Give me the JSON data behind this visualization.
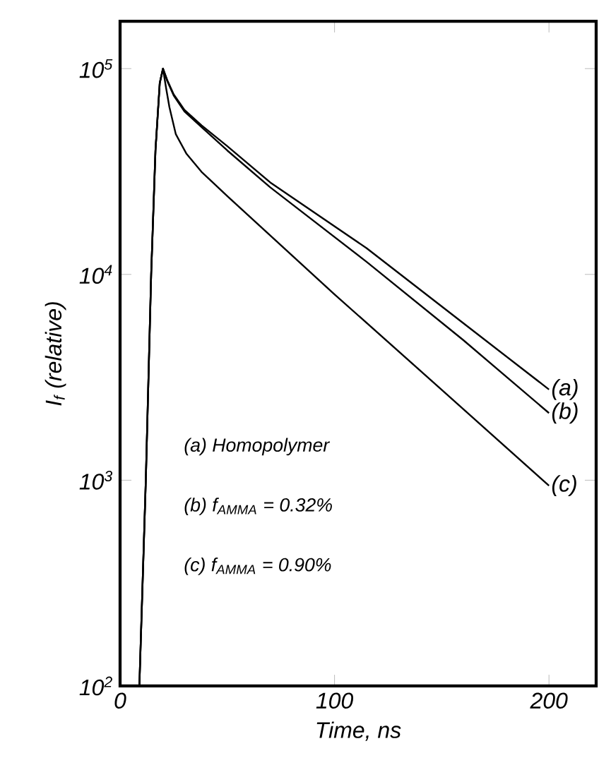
{
  "chart_data": {
    "type": "line",
    "xlabel": "Time, ns",
    "ylabel": "*I*$_{f}$ (relative)",
    "xlim": [
      0,
      222
    ],
    "ylim": [
      100,
      170000
    ],
    "log": "y",
    "grid": false,
    "marker": "none",
    "line_style": "solid",
    "xticks": [
      0,
      100,
      200
    ],
    "yticks": [
      {
        "value": 100,
        "label": "10$^{2}$"
      },
      {
        "value": 1000,
        "label": "10$^{3}$"
      },
      {
        "value": 10000,
        "label": "10$^{4}$"
      },
      {
        "value": 100000,
        "label": "10$^{5}$"
      }
    ],
    "series": [
      {
        "color": "#000000",
        "x": [
          9,
          12,
          14.5,
          16.5,
          18.5,
          20,
          22,
          25,
          30,
          38,
          50,
          70,
          115,
          160,
          200
        ],
        "values": [
          100,
          1000,
          10000,
          40000,
          85000,
          100000,
          88000,
          75000,
          63000,
          53000,
          42000,
          28000,
          13400,
          5800,
          2760
        ]
      },
      {
        "color": "#000000",
        "x": [
          9,
          12,
          14.5,
          16.5,
          18.5,
          20,
          22,
          25,
          30,
          38,
          50,
          70,
          115,
          160,
          200
        ],
        "values": [
          100,
          1000,
          10000,
          40000,
          85000,
          100000,
          87000,
          74000,
          62000,
          52000,
          40000,
          26500,
          11500,
          4800,
          2120
        ]
      },
      {
        "color": "#000000",
        "x": [
          9,
          12,
          14.5,
          16.5,
          18.5,
          20,
          21.5,
          23,
          26,
          31,
          38,
          50,
          100,
          150,
          200
        ],
        "values": [
          100,
          1000,
          10000,
          40000,
          85000,
          100000,
          80000,
          65000,
          48000,
          38500,
          31500,
          24000,
          8000,
          2750,
          940
        ]
      }
    ],
    "annotations": [
      "(a)",
      "(b)",
      "(c)",
      "(a) Homopolymer",
      "(b) f$_{AMMA}$ = 0.32%",
      "(c) f$_{AMMA}$ = 0.90%"
    ]
  }
}
